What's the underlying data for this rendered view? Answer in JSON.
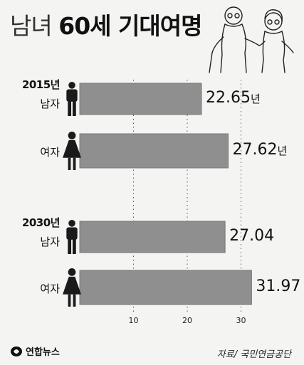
{
  "title": {
    "light": "남녀",
    "bold": "60세 기대여명"
  },
  "footer": {
    "logo_text": "연합뉴스",
    "source": "자료/ 국민연금공단"
  },
  "colors": {
    "bar": "#8f8f8f",
    "bar_edge": "#777777",
    "figure": "#1a1a1a",
    "gridline": "#555555"
  },
  "chart_data": {
    "type": "bar",
    "orientation": "horizontal",
    "title": "남녀 60세 기대여명",
    "groups": [
      {
        "year": "2015년",
        "items": [
          {
            "gender": "남자",
            "icon": "male-figure-icon",
            "value": 22.65,
            "label": "22.65",
            "unit": "년"
          },
          {
            "gender": "여자",
            "icon": "female-figure-icon",
            "value": 27.62,
            "label": "27.62",
            "unit": "년"
          }
        ]
      },
      {
        "year": "2030년",
        "items": [
          {
            "gender": "남자",
            "icon": "male-figure-icon",
            "value": 27.04,
            "label": "27.04",
            "unit": ""
          },
          {
            "gender": "여자",
            "icon": "female-figure-icon",
            "value": 31.97,
            "label": "31.97",
            "unit": ""
          }
        ]
      }
    ],
    "x_ticks": [
      10,
      20,
      30
    ],
    "xlim": [
      0,
      34
    ],
    "grid": "vertical-dotted",
    "source": "자료/ 국민연금공단"
  }
}
